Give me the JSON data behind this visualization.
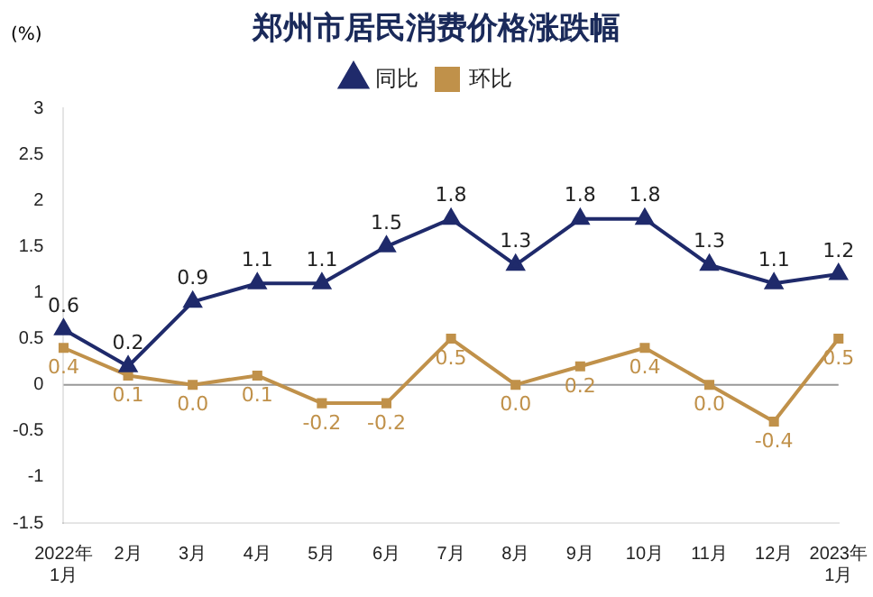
{
  "chart_data": {
    "type": "line",
    "title": "郑州市居民消费价格涨跌幅",
    "ylabel": "(%)",
    "categories": [
      "2022年\n1月",
      "2月",
      "3月",
      "4月",
      "5月",
      "6月",
      "7月",
      "8月",
      "9月",
      "10月",
      "11月",
      "12月",
      "2023年\n1月"
    ],
    "series": [
      {
        "name": "同比",
        "color": "#1f2a6b",
        "marker": "triangle",
        "values": [
          0.6,
          0.2,
          0.9,
          1.1,
          1.1,
          1.5,
          1.8,
          1.3,
          1.8,
          1.8,
          1.3,
          1.1,
          1.2
        ],
        "value_labels": [
          "0.6",
          "0.2",
          "0.9",
          "1.1",
          "1.1",
          "1.5",
          "1.8",
          "1.3",
          "1.8",
          "1.8",
          "1.3",
          "1.1",
          "1.2"
        ]
      },
      {
        "name": "环比",
        "color": "#c0914a",
        "marker": "square",
        "values": [
          0.4,
          0.1,
          0,
          0.1,
          -0.2,
          -0.2,
          0.5,
          0,
          0.2,
          0.4,
          0,
          -0.4,
          0.5
        ],
        "value_labels": [
          "0.4",
          "0.1",
          "0.0",
          "0.1",
          "-0.2",
          "-0.2",
          "0.5",
          "0.0",
          "0.2",
          "0.4",
          "0.0",
          "-0.4",
          "0.5"
        ]
      }
    ],
    "ylim": [
      -1.5,
      3
    ],
    "yticks": [
      -1.5,
      -1,
      -0.5,
      0,
      0.5,
      1,
      1.5,
      2,
      2.5,
      3
    ],
    "ref_lines": [
      {
        "axis": "y",
        "value": 0,
        "color": "#999999"
      }
    ],
    "grid": false,
    "legend": "top",
    "line_style": "solid"
  }
}
